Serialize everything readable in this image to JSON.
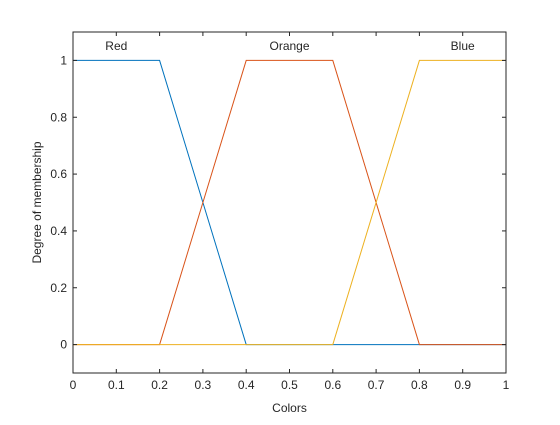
{
  "chart_data": {
    "type": "line",
    "xlabel": "Colors",
    "ylabel": "Degree of membership",
    "xlim": [
      0,
      1
    ],
    "ylim": [
      -0.1,
      1.1
    ],
    "xticks": [
      0,
      0.1,
      0.2,
      0.3,
      0.4,
      0.5,
      0.6,
      0.7,
      0.8,
      0.9,
      1
    ],
    "xtick_labels": [
      "0",
      "0.1",
      "0.2",
      "0.3",
      "0.4",
      "0.5",
      "0.6",
      "0.7",
      "0.8",
      "0.9",
      "1"
    ],
    "yticks": [
      0,
      0.2,
      0.4,
      0.6,
      0.8,
      1
    ],
    "ytick_labels": [
      "0",
      "0.2",
      "0.4",
      "0.6",
      "0.8",
      "1"
    ],
    "grid": false,
    "series": [
      {
        "name": "Red",
        "color": "#0072BD",
        "x": [
          0,
          0.2,
          0.4,
          1
        ],
        "y": [
          1,
          1,
          0,
          0
        ],
        "label_x": 0.1,
        "label_y": 1.05
      },
      {
        "name": "Orange",
        "color": "#D95319",
        "x": [
          0,
          0.2,
          0.4,
          0.6,
          0.8,
          1
        ],
        "y": [
          0,
          0,
          1,
          1,
          0,
          0
        ],
        "label_x": 0.5,
        "label_y": 1.05
      },
      {
        "name": "Blue",
        "color": "#EDB120",
        "x": [
          0,
          0.6,
          0.8,
          1
        ],
        "y": [
          0,
          0,
          1,
          1
        ],
        "label_x": 0.9,
        "label_y": 1.05
      }
    ]
  }
}
